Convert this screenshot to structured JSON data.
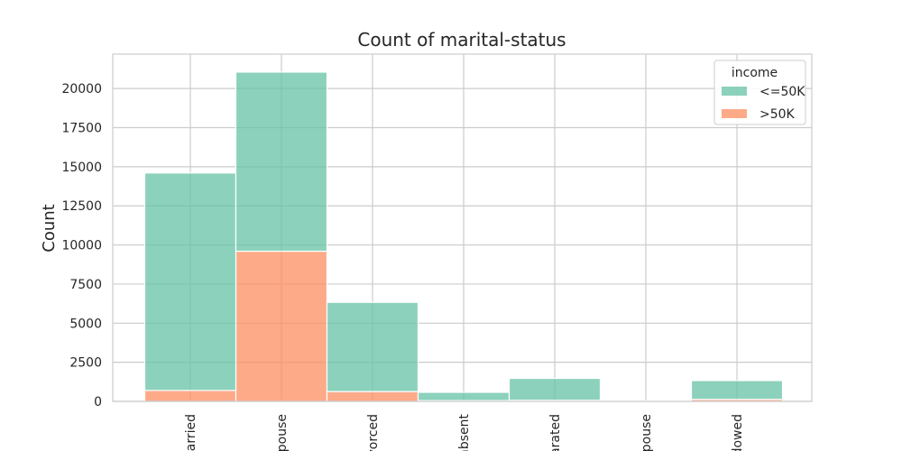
{
  "chart_data": {
    "type": "bar",
    "stacked": true,
    "title": "Count of marital-status",
    "xlabel": "",
    "ylabel": "Count",
    "categories": [
      "Never-married",
      "Married-civ-spouse",
      "Divorced",
      "Married-spouse-absent",
      "Separated",
      "Married-AF-spouse",
      "Widowed"
    ],
    "category_labels_visible": [
      "arried",
      "pouse",
      "vorced",
      "absent",
      "arated",
      "pouse",
      "dowed"
    ],
    "series": [
      {
        "name": "<=50K",
        "color": "#66c2a5",
        "values": [
          13900,
          11450,
          5700,
          530,
          1400,
          25,
          1200
        ]
      },
      {
        "name": ">50K",
        "color": "#fc8d62",
        "values": [
          700,
          9600,
          630,
          50,
          70,
          15,
          130
        ]
      }
    ],
    "ylim": [
      0,
      22200
    ],
    "yticks": [
      0,
      2500,
      5000,
      7500,
      10000,
      12500,
      15000,
      17500,
      20000
    ],
    "grid": true,
    "legend": {
      "title": "income",
      "placement": "top-right"
    }
  }
}
